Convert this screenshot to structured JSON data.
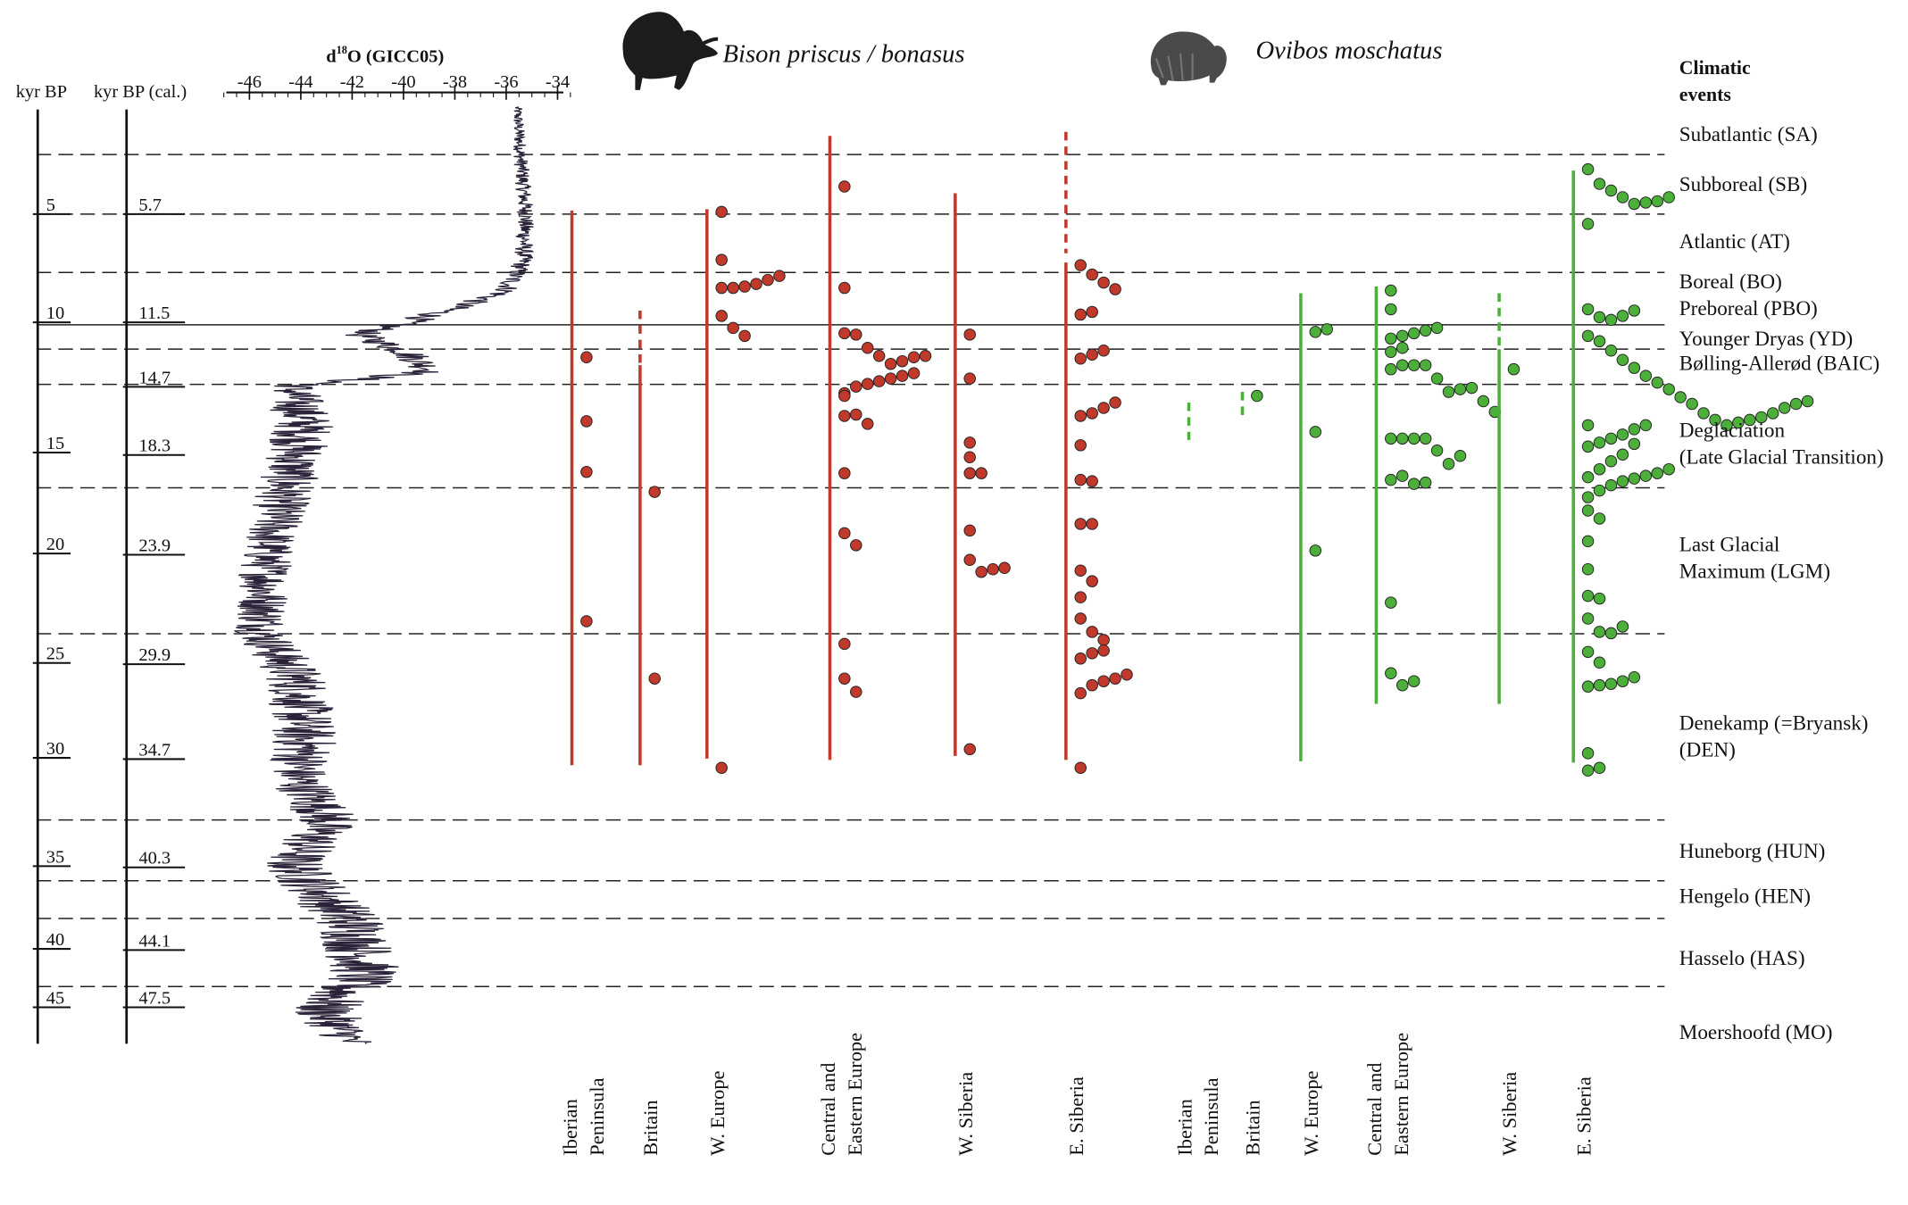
{
  "chart_data": {
    "type": "scatter",
    "title": "",
    "scale_left": {
      "title": "kyr BP",
      "ticks": [
        "5",
        "10",
        "15",
        "20",
        "25",
        "30",
        "35",
        "40",
        "45"
      ]
    },
    "scale_cal": {
      "title": "kyr BP (cal.)",
      "ticks": [
        "5.7",
        "11.5",
        "14.7",
        "18.3",
        "23.9",
        "29.9",
        "34.7",
        "40.3",
        "44.1",
        "47.5"
      ]
    },
    "isotope": {
      "title_prefix": "d",
      "title_sup": "18",
      "title_rest": "O (GICC05)",
      "ticks": [
        "-46",
        "-44",
        "-42",
        "-40",
        "-38",
        "-36",
        "-34"
      ],
      "xlim": [
        -47,
        -33.5
      ]
    },
    "climatic_events": {
      "heading_line1": "Climatic",
      "heading_line2": "events",
      "labels": [
        {
          "lines": [
            "Subatlantic (SA)"
          ],
          "age": 0.9
        },
        {
          "lines": [
            "Subboreal (SB)"
          ],
          "age": 3.5
        },
        {
          "lines": [
            "Atlantic (AT)"
          ],
          "age": 6.4
        },
        {
          "lines": [
            "Boreal (BO)"
          ],
          "age": 8.4
        },
        {
          "lines": [
            "Preboreal (PBO)"
          ],
          "age": 9.7
        },
        {
          "lines": [
            "Younger Dryas (YD)"
          ],
          "age": 11.3
        },
        {
          "lines": [
            "Bølling-Allerød (BAIC)"
          ],
          "age": 12.6
        },
        {
          "lines": [
            "Deglaciation",
            "(Late Glacial Transition)"
          ],
          "age": 14.8
        },
        {
          "lines": [
            "Last Glacial",
            "Maximum (LGM)"
          ],
          "age": 19.5
        },
        {
          "lines": [
            "Denekamp (=Bryansk)",
            "(DEN)"
          ],
          "age": 28.9
        },
        {
          "lines": [
            "Huneborg (HUN)"
          ],
          "age": 35.0
        },
        {
          "lines": [
            "Hengelo (HEN)"
          ],
          "age": 37.5
        },
        {
          "lines": [
            "Hasselo (HAS)"
          ],
          "age": 40.9
        },
        {
          "lines": [
            "Moershoofd (MO)"
          ],
          "age": 44.4
        }
      ]
    },
    "species": [
      {
        "name": "Bison priscus / bonasus",
        "color": "#c0392b"
      },
      {
        "name": "Ovibos moschatus",
        "color": "#4caf3a"
      }
    ],
    "regions": [
      {
        "label_lines": [
          "Iberian",
          "Peninsula"
        ],
        "species": "Bison priscus / bonasus",
        "range": [
          [
            5.0,
            46.6
          ]
        ],
        "dashed": [],
        "ages": [
          16.0,
          20.8,
          24.6,
          35.8
        ]
      },
      {
        "label_lines": [
          "Britain"
        ],
        "species": "Bison priscus / bonasus",
        "range": [
          [
            12.5,
            16.6
          ],
          [
            16.6,
            46.6
          ]
        ],
        "dashed": [
          0
        ],
        "ages": [
          26.1,
          40.1
        ]
      },
      {
        "label_lines": [
          "W. Europe"
        ],
        "species": "Bison priscus / bonasus",
        "range": [
          [
            4.9,
            46.1
          ]
        ],
        "dashed": [],
        "ages": [
          5.1,
          8.7,
          10.8,
          10.8,
          10.7,
          10.5,
          10.2,
          9.9,
          12.9,
          13.8,
          14.4,
          46.8
        ]
      },
      {
        "label_lines": [
          "Central and",
          "Eastern Europe"
        ],
        "species": "Bison priscus / bonasus",
        "range": [
          [
            -0.6,
            46.2
          ]
        ],
        "dashed": [],
        "ages": [
          3.2,
          10.8,
          14.2,
          14.3,
          15.3,
          15.9,
          16.5,
          16.3,
          16.0,
          15.9,
          18.7,
          18.2,
          18.0,
          17.8,
          17.6,
          17.4,
          17.2,
          18.9,
          20.4,
          20.3,
          21.0,
          24.7,
          29.2,
          30.1,
          37.5,
          40.1,
          41.1
        ]
      },
      {
        "label_lines": [
          "W. Siberia"
        ],
        "species": "Bison priscus / bonasus",
        "range": [
          [
            3.7,
            45.9
          ]
        ],
        "dashed": [],
        "ages": [
          14.3,
          17.6,
          22.4,
          23.5,
          24.7,
          24.7,
          29.0,
          31.2,
          32.1,
          31.9,
          31.8,
          45.4
        ]
      },
      {
        "label_lines": [
          "E. Siberia"
        ],
        "species": "Bison priscus / bonasus",
        "range": [
          [
            -0.9,
            8.2
          ],
          [
            8.9,
            46.2
          ]
        ],
        "dashed": [
          0
        ],
        "ages": [
          9.1,
          9.8,
          10.4,
          10.9,
          12.8,
          12.6,
          16.1,
          15.8,
          15.5,
          20.4,
          20.2,
          19.8,
          19.4,
          22.6,
          25.2,
          25.3,
          28.5,
          28.5,
          32.0,
          32.8,
          34.0,
          35.6,
          36.6,
          37.2,
          38.6,
          38.2,
          38.0,
          41.2,
          40.6,
          40.3,
          40.1,
          39.8,
          46.8
        ]
      },
      {
        "label_lines": [
          "Iberian",
          "Peninsula"
        ],
        "species": "Ovibos moschatus",
        "range": [
          [
            19.4,
            22.2
          ]
        ],
        "dashed": [
          0
        ],
        "ages": []
      },
      {
        "label_lines": [
          "Britain"
        ],
        "species": "Ovibos moschatus",
        "range": [
          [
            18.6,
            20.4
          ]
        ],
        "dashed": [
          0
        ],
        "ages": [
          18.9
        ]
      },
      {
        "label_lines": [
          "W. Europe"
        ],
        "species": "Ovibos moschatus",
        "range": [
          [
            11.2,
            46.3
          ]
        ],
        "dashed": [],
        "ages": [
          14.1,
          13.9,
          21.6,
          30.5
        ]
      },
      {
        "label_lines": [
          "Central and",
          "Eastern Europe"
        ],
        "species": "Ovibos moschatus",
        "range": [
          [
            10.7,
            42.0
          ]
        ],
        "dashed": [],
        "ages": [
          11.0,
          12.4,
          14.6,
          14.4,
          14.2,
          14.0,
          13.8,
          15.6,
          15.3,
          16.9,
          16.6,
          16.6,
          16.6,
          17.6,
          18.6,
          18.4,
          18.3,
          19.3,
          20.1,
          22.1,
          22.1,
          22.1,
          22.1,
          23.0,
          24.0,
          23.4,
          25.2,
          24.9,
          25.5,
          25.4,
          34.4,
          39.7,
          40.6,
          40.3
        ]
      },
      {
        "label_lines": [
          "W. Siberia"
        ],
        "species": "Ovibos moschatus",
        "range": [
          [
            11.2,
            15.4
          ],
          [
            15.4,
            42.0
          ]
        ],
        "dashed": [
          0
        ],
        "ages": [
          16.9
        ]
      },
      {
        "label_lines": [
          "E. Siberia"
        ],
        "species": "Ovibos moschatus",
        "range": [
          [
            2.0,
            46.4
          ]
        ],
        "dashed": [],
        "ages": [
          1.9,
          3.0,
          3.5,
          4.0,
          4.5,
          4.4,
          4.3,
          4.0,
          6.0,
          12.4,
          13.0,
          13.2,
          12.9,
          12.5,
          14.4,
          14.8,
          15.5,
          16.2,
          16.8,
          17.4,
          17.9,
          18.4,
          19.0,
          19.5,
          20.2,
          20.7,
          21.1,
          20.9,
          20.7,
          20.5,
          20.2,
          19.8,
          19.5,
          19.3,
          21.1,
          22.7,
          22.4,
          22.1,
          21.8,
          21.4,
          21.1,
          25.0,
          24.4,
          23.8,
          23.3,
          22.5,
          26.5,
          26.0,
          25.6,
          25.3,
          25.1,
          24.9,
          24.7,
          24.4,
          27.5,
          28.1,
          29.8,
          31.9,
          33.9,
          34.1,
          35.6,
          36.6,
          36.7,
          36.2,
          38.1,
          38.9,
          40.7,
          40.6,
          40.5,
          40.3,
          40.0,
          45.7,
          47.0,
          46.8
        ]
      }
    ]
  }
}
